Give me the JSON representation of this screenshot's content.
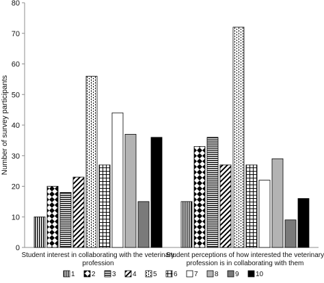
{
  "chart_data": {
    "type": "bar",
    "title": "",
    "xlabel": "",
    "ylabel": "Number of survey participants",
    "ylim": [
      0,
      80
    ],
    "yticks": [
      0,
      10,
      20,
      30,
      40,
      50,
      60,
      70,
      80
    ],
    "grid": false,
    "legend_position": "bottom",
    "categories": [
      [
        "Student interest in collaborating with the veterinary",
        "profession"
      ],
      [
        "Student perceptions of how interested the veterinary",
        "profession is in collaborating with them"
      ]
    ],
    "series": [
      {
        "name": "1",
        "pattern": "vlines",
        "values": [
          10,
          15
        ]
      },
      {
        "name": "2",
        "pattern": "diamonds",
        "values": [
          20,
          33
        ]
      },
      {
        "name": "3",
        "pattern": "hlines",
        "values": [
          18,
          36
        ]
      },
      {
        "name": "4",
        "pattern": "diagonal",
        "values": [
          23,
          27
        ]
      },
      {
        "name": "5",
        "pattern": "dashes",
        "values": [
          56,
          72
        ]
      },
      {
        "name": "6",
        "pattern": "grid",
        "values": [
          27,
          27
        ]
      },
      {
        "name": "7",
        "pattern": "white",
        "values": [
          44,
          22
        ]
      },
      {
        "name": "8",
        "pattern": "lightgray",
        "values": [
          37,
          29
        ]
      },
      {
        "name": "9",
        "pattern": "darkgray",
        "values": [
          15,
          9
        ]
      },
      {
        "name": "10",
        "pattern": "black",
        "values": [
          36,
          16
        ]
      }
    ],
    "colors": {
      "lightgray": "#b3b3b3",
      "darkgray": "#7a7a7a",
      "black": "#000000",
      "axis": "#8c8c8c"
    }
  }
}
